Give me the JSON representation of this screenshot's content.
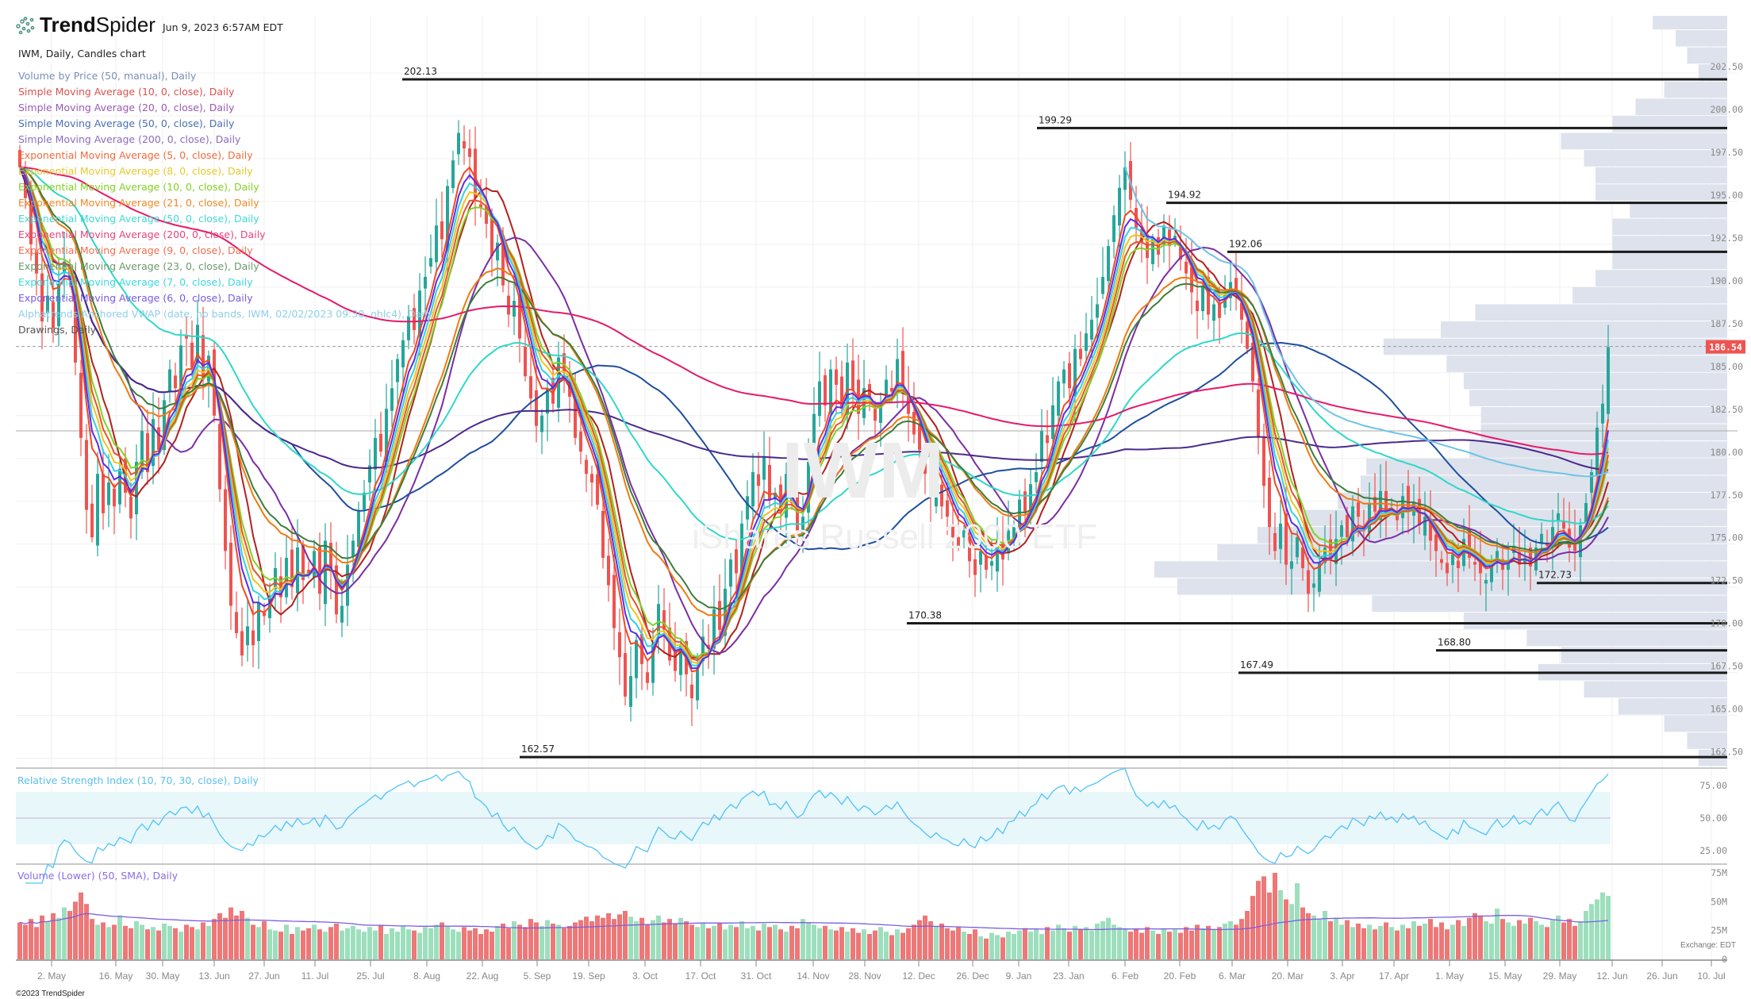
{
  "header": {
    "brand_bold": "Trend",
    "brand_light": "Spider",
    "timestamp": "Jun 9, 2023 6:57AM EDT",
    "chart_title": "IWM, Daily, Candles chart",
    "copyright": "©2023 TrendSpider",
    "exchange": "Exchange: EDT"
  },
  "watermark": {
    "symbol": "IWM",
    "name": "iShares Russell 2000 ETF"
  },
  "legend": [
    {
      "label": "Volume by Price (50, manual), Daily",
      "color": "#7a8fb5"
    },
    {
      "label": "Simple Moving Average (10, 0, close), Daily",
      "color": "#d9534f",
      "line": "#b3201f",
      "type": "sma",
      "period": 10
    },
    {
      "label": "Simple Moving Average (20, 0, close), Daily",
      "color": "#9b59b6",
      "line": "#7a2da6",
      "type": "sma",
      "period": 20
    },
    {
      "label": "Simple Moving Average (50, 0, close), Daily",
      "color": "#4a6fb5",
      "line": "#1e4fa0",
      "type": "sma",
      "period": 50
    },
    {
      "label": "Simple Moving Average (200, 0, close), Daily",
      "color": "#8e6bbf",
      "line": "#4b2a8c",
      "type": "sma",
      "period": 200
    },
    {
      "label": "Exponential Moving Average (5, 0, close), Daily",
      "color": "#f26b3a",
      "line": "#f04a23",
      "type": "ema",
      "period": 5
    },
    {
      "label": "Exponential Moving Average (8, 0, close), Daily",
      "color": "#e8c82a",
      "line": "#f0c419",
      "type": "ema",
      "period": 8
    },
    {
      "label": "Exponential Moving Average (10, 0, close), Daily",
      "color": "#7ed321",
      "line": "#7ed321",
      "type": "ema",
      "period": 10
    },
    {
      "label": "Exponential Moving Average (21, 0, close), Daily",
      "color": "#f08a24",
      "line": "#f07a10",
      "type": "ema",
      "period": 21
    },
    {
      "label": "Exponential Moving Average (50, 0, close), Daily",
      "color": "#40d8d8",
      "line": "#2ed8c8",
      "type": "ema",
      "period": 50
    },
    {
      "label": "Exponential Moving Average (200, 0, close), Daily",
      "color": "#e8457a",
      "line": "#e6196b",
      "type": "ema",
      "period": 200
    },
    {
      "label": "Exponential Moving Average (9, 0, close), Daily",
      "color": "#f07050",
      "line": "#e8532b",
      "type": "ema",
      "period": 9
    },
    {
      "label": "Exponential Moving Average (23, 0, close), Daily",
      "color": "#6a9a6a",
      "line": "#3c7d3c",
      "type": "ema",
      "period": 23
    },
    {
      "label": "Exponential Moving Average (7, 0, close), Daily",
      "color": "#3dd8e0",
      "line": "#33d0e0",
      "type": "ema",
      "period": 7
    },
    {
      "label": "Exponential Moving Average (6, 0, close), Daily",
      "color": "#7a5ae0",
      "line": "#5a2de8",
      "type": "ema",
      "period": 6
    },
    {
      "label": "Alphatrends Anchored VWAP (date, no bands, IWM, 02/02/2023 09:30, ohlc4), Daily",
      "color": "#8ecfe8",
      "line": "#6ec3e6",
      "type": "avwap"
    },
    {
      "label": "Drawings, Daily",
      "color": "#555555"
    }
  ],
  "panels": {
    "rsi_title": "Relative Strength Index (10, 70, 30, close), Daily",
    "volume_title": "Volume (Lower) (50, SMA), Daily"
  },
  "chart_data": {
    "type": "candlestick",
    "symbol": "IWM",
    "interval": "Daily",
    "current_price": 186.54,
    "current_price_label": "186.54",
    "colors": {
      "up": "#26a69a",
      "down": "#ef5350",
      "vol_up": "#9ddfbd",
      "vol_down": "#ee7777",
      "volume_profile": "#dde2ec",
      "rsi": "#4fc3f7",
      "rsi_band": "#e8f7fa",
      "volume_sma": "#7b5ee0"
    },
    "closes": [
      197,
      195.2,
      192.5,
      190.8,
      188,
      189.5,
      187.6,
      190.2,
      191.5,
      190.4,
      185.6,
      181.2,
      177,
      175.4,
      179.1,
      176.8,
      178.6,
      177.2,
      179.4,
      178,
      176.5,
      179.8,
      181.6,
      179.2,
      182.3,
      180.5,
      183.4,
      185.2,
      184.1,
      186.6,
      187,
      185.3,
      187.8,
      184.6,
      186,
      182.5,
      178.2,
      174.6,
      171.4,
      169.8,
      168.5,
      170.2,
      169.1,
      171.6,
      170.8,
      172,
      173.6,
      171.9,
      174.2,
      172.5,
      174.8,
      172.9,
      173.3,
      174.6,
      172.1,
      175.2,
      173.4,
      170.9,
      171.4,
      173.8,
      175.2,
      176.9,
      178,
      179.6,
      181.2,
      180.4,
      182.9,
      184.1,
      185.8,
      186.9,
      188.3,
      187.5,
      189.8,
      190.6,
      191.7,
      193.6,
      192.8,
      195.9,
      197.4,
      199,
      198.1,
      197.6,
      195.2,
      194.6,
      193.7,
      191.8,
      192.6,
      190.1,
      188.4,
      189.2,
      187,
      184.8,
      183.5,
      181.9,
      182.5,
      184.1,
      183.2,
      185.9,
      185,
      183.6,
      181.2,
      180.4,
      179.1,
      178.6,
      177.3,
      174.2,
      172.6,
      170.1,
      168.4,
      166.1,
      167.3,
      169.4,
      168,
      166.9,
      169.2,
      171.5,
      170,
      168.2,
      167.6,
      169.1,
      167.4,
      166,
      167.8,
      169.6,
      168.9,
      171.2,
      170,
      172.4,
      174.1,
      173.3,
      176.2,
      177.8,
      179.2,
      178.4,
      180.1,
      177.6,
      178,
      176.9,
      179.1,
      177.4,
      175.8,
      176.6,
      179.8,
      182.6,
      184.5,
      183.1,
      185.2,
      184.3,
      182.9,
      185.6,
      184,
      182.6,
      184.1,
      183.5,
      182.2,
      183.2,
      184.6,
      183.9,
      185.8,
      184.2,
      182.6,
      181.4,
      180.5,
      179.1,
      177.8,
      178.6,
      177.2,
      176.6,
      175.4,
      174.9,
      175.8,
      174,
      173.2,
      174.6,
      173.5,
      174,
      175.2,
      174.1,
      175.8,
      176,
      177.6,
      176.8,
      178.5,
      179.2,
      181.6,
      180.9,
      183.1,
      184.5,
      185.2,
      184.1,
      186.4,
      185.8,
      187.3,
      188.1,
      189,
      190.6,
      192.4,
      194.2,
      195.8,
      197,
      195.1,
      193.4,
      192.6,
      191.7,
      192.8,
      191.9,
      193.6,
      192.4,
      193,
      191.6,
      190.8,
      189.7,
      188.6,
      190.1,
      188.4,
      189,
      188.2,
      189.6,
      190.3,
      189.7,
      188.1,
      186.4,
      184.5,
      181.2,
      178.4,
      176,
      174.6,
      176.2,
      173.8,
      174,
      175.4,
      173.6,
      172.1,
      172.7,
      173.9,
      174.8,
      174.2,
      175.3,
      176.1,
      175.4,
      177.2,
      176.6,
      175.8,
      177.4,
      176.9,
      178.1,
      176.8,
      177.3,
      176.4,
      177.8,
      176.9,
      177.4,
      176.1,
      176.6,
      175.2,
      174.6,
      173.9,
      173.3,
      174.4,
      173.6,
      175.3,
      174.2,
      173.8,
      173.3,
      172.9,
      173.8,
      174.6,
      173.5,
      174,
      174.9,
      173.8,
      174.2,
      173.7,
      174.8,
      175.6,
      174.9,
      176,
      176.8,
      175.9,
      174.8,
      174.6,
      176.1,
      177.4,
      179.2,
      181.8,
      183.2,
      186.5
    ],
    "volumes_millions": [
      32,
      30,
      35,
      28,
      38,
      33,
      40,
      36,
      45,
      42,
      50,
      58,
      48,
      35,
      30,
      32,
      28,
      30,
      38,
      29,
      27,
      33,
      30,
      26,
      28,
      25,
      31,
      29,
      27,
      24,
      30,
      28,
      26,
      32,
      29,
      35,
      40,
      36,
      45,
      38,
      42,
      36,
      30,
      28,
      33,
      26,
      25,
      24,
      30,
      22,
      28,
      25,
      27,
      30,
      26,
      24,
      28,
      31,
      25,
      27,
      29,
      26,
      24,
      28,
      25,
      30,
      22,
      27,
      24,
      29,
      26,
      25,
      23,
      28,
      27,
      30,
      32,
      29,
      26,
      24,
      28,
      25,
      27,
      22,
      26,
      24,
      29,
      31,
      27,
      33,
      30,
      28,
      35,
      32,
      29,
      34,
      31,
      30,
      27,
      29,
      32,
      34,
      37,
      33,
      38,
      36,
      40,
      35,
      39,
      42,
      37,
      33,
      36,
      30,
      34,
      38,
      32,
      35,
      31,
      36,
      33,
      30,
      28,
      32,
      27,
      29,
      31,
      26,
      30,
      28,
      33,
      27,
      29,
      25,
      31,
      28,
      30,
      26,
      24,
      29,
      27,
      35,
      32,
      30,
      27,
      29,
      26,
      25,
      28,
      24,
      27,
      23,
      26,
      22,
      25,
      28,
      24,
      21,
      26,
      23,
      27,
      30,
      34,
      38,
      33,
      29,
      31,
      27,
      25,
      28,
      24,
      22,
      26,
      20,
      18,
      23,
      21,
      19,
      24,
      22,
      25,
      27,
      24,
      26,
      22,
      28,
      25,
      30,
      27,
      24,
      29,
      26,
      28,
      25,
      31,
      33,
      36,
      30,
      28,
      27,
      24,
      26,
      23,
      28,
      25,
      22,
      27,
      24,
      26,
      23,
      28,
      25,
      30,
      27,
      29,
      26,
      28,
      31,
      33,
      30,
      35,
      42,
      55,
      68,
      72,
      58,
      75,
      60,
      52,
      48,
      66,
      45,
      40,
      38,
      35,
      42,
      33,
      36,
      30,
      34,
      28,
      31,
      27,
      30,
      26,
      29,
      32,
      28,
      25,
      30,
      27,
      33,
      29,
      31,
      35,
      28,
      32,
      26,
      30,
      34,
      29,
      36,
      40,
      38,
      33,
      31,
      44,
      35,
      32,
      29,
      34,
      31,
      36,
      33,
      30,
      28,
      34,
      38,
      32,
      35,
      29,
      33,
      42,
      48,
      52,
      58,
      55
    ],
    "price_axis": {
      "min": 162.5,
      "max": 202.5,
      "ticks": [
        "202.50",
        "200.00",
        "197.50",
        "195.00",
        "192.50",
        "190.00",
        "187.50",
        "185.00",
        "182.50",
        "180.00",
        "177.50",
        "175.00",
        "172.50",
        "170.00",
        "167.50",
        "165.00",
        "162.50"
      ]
    },
    "rsi_axis": {
      "ticks": [
        "75.00",
        "50.00",
        "25.00"
      ],
      "overbought": 70,
      "oversold": 30,
      "period": 10
    },
    "volume_axis": {
      "ticks": [
        "75M",
        "50M",
        "25M",
        "0"
      ]
    },
    "x_ticks": [
      "2. May",
      "16. May",
      "30. May",
      "13. Jun",
      "27. Jun",
      "11. Jul",
      "25. Jul",
      "8. Aug",
      "22. Aug",
      "5. Sep",
      "19. Sep",
      "3. Oct",
      "17. Oct",
      "31. Oct",
      "14. Nov",
      "28. Nov",
      "12. Dec",
      "26. Dec",
      "9. Jan",
      "23. Jan",
      "6. Feb",
      "20. Feb",
      "6. Mar",
      "20. Mar",
      "3. Apr",
      "17. Apr",
      "1. May",
      "15. May",
      "29. May",
      "12. Jun",
      "26. Jun",
      "10. Jul"
    ],
    "levels": [
      {
        "value": 202.13,
        "label": "202.13"
      },
      {
        "value": 199.29,
        "label": "199.29"
      },
      {
        "value": 194.92,
        "label": "194.92"
      },
      {
        "value": 192.06,
        "label": "192.06"
      },
      {
        "value": 172.73,
        "label": "172.73"
      },
      {
        "value": 170.38,
        "label": "170.38"
      },
      {
        "value": 168.8,
        "label": "168.80"
      },
      {
        "value": 167.49,
        "label": "167.49"
      },
      {
        "value": 162.57,
        "label": "162.57"
      }
    ],
    "volume_profile": {
      "price_top": 206,
      "bin_size": 1,
      "relative_volume_pct": [
        13,
        9,
        7,
        5,
        11,
        16,
        20,
        29,
        25,
        23,
        23,
        17,
        20,
        20,
        20,
        23,
        27,
        44,
        50,
        60,
        49,
        46,
        45,
        43,
        43,
        45,
        63,
        64,
        68,
        74,
        82,
        89,
        100,
        96,
        62,
        46,
        35,
        29,
        33,
        25,
        19,
        11,
        7,
        5
      ]
    }
  }
}
